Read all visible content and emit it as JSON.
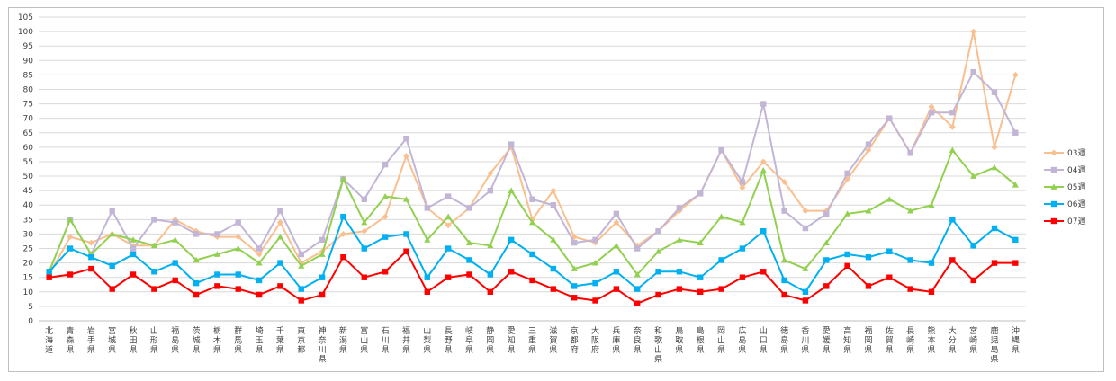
{
  "chart_data": {
    "type": "line",
    "ylim": [
      0,
      105
    ],
    "yticks": [
      0,
      5,
      10,
      15,
      20,
      25,
      30,
      35,
      40,
      45,
      50,
      55,
      60,
      65,
      70,
      75,
      80,
      85,
      90,
      95,
      100,
      105
    ],
    "grid": true,
    "legend_position": "right",
    "categories": [
      "北海道",
      "青森県",
      "岩手県",
      "宮城県",
      "秋田県",
      "山形県",
      "福島県",
      "茨城県",
      "栃木県",
      "群馬県",
      "埼玉県",
      "千葉県",
      "東京都",
      "神奈川県",
      "新潟県",
      "富山県",
      "石川県",
      "福井県",
      "山梨県",
      "長野県",
      "岐阜県",
      "静岡県",
      "愛知県",
      "三重県",
      "滋賀県",
      "京都府",
      "大阪府",
      "兵庫県",
      "奈良県",
      "和歌山県",
      "鳥取県",
      "島根県",
      "岡山県",
      "広島県",
      "山口県",
      "徳島県",
      "香川県",
      "愛媛県",
      "高知県",
      "福岡県",
      "佐賀県",
      "長崎県",
      "熊本県",
      "大分県",
      "宮崎県",
      "鹿児島県",
      "沖縄県"
    ],
    "series": [
      {
        "name": "03週",
        "color": "#f9bf8f",
        "marker": "diamond",
        "values": [
          16,
          29,
          27,
          30,
          26,
          26,
          35,
          31,
          29,
          29,
          23,
          34,
          20,
          24,
          30,
          31,
          36,
          57,
          39,
          33,
          39,
          51,
          60,
          35,
          45,
          29,
          27,
          34,
          26,
          31,
          38,
          44,
          59,
          46,
          55,
          48,
          38,
          38,
          49,
          59,
          70,
          58,
          74,
          67,
          100,
          60,
          85
        ]
      },
      {
        "name": "04週",
        "color": "#c2b5d5",
        "marker": "square",
        "values": [
          17,
          35,
          23,
          38,
          25,
          35,
          34,
          30,
          30,
          34,
          25,
          38,
          23,
          28,
          49,
          42,
          54,
          63,
          39,
          43,
          39,
          45,
          61,
          42,
          40,
          27,
          28,
          37,
          25,
          31,
          39,
          44,
          59,
          48,
          75,
          38,
          32,
          37,
          51,
          61,
          70,
          58,
          72,
          72,
          86,
          79,
          65
        ]
      },
      {
        "name": "05週",
        "color": "#92d050",
        "marker": "triangle",
        "values": [
          17,
          35,
          23,
          30,
          28,
          26,
          28,
          21,
          23,
          25,
          20,
          29,
          19,
          23,
          49,
          34,
          43,
          42,
          28,
          36,
          27,
          26,
          45,
          34,
          28,
          18,
          20,
          26,
          16,
          24,
          28,
          27,
          36,
          34,
          52,
          21,
          18,
          27,
          37,
          38,
          42,
          38,
          40,
          59,
          50,
          53,
          47
        ]
      },
      {
        "name": "06週",
        "color": "#00b0f0",
        "marker": "square",
        "values": [
          17,
          25,
          22,
          19,
          23,
          17,
          20,
          13,
          16,
          16,
          14,
          20,
          11,
          15,
          36,
          25,
          29,
          30,
          15,
          25,
          21,
          16,
          28,
          23,
          18,
          12,
          13,
          17,
          11,
          17,
          17,
          15,
          21,
          25,
          31,
          14,
          10,
          21,
          23,
          22,
          24,
          21,
          20,
          35,
          26,
          32,
          28
        ]
      },
      {
        "name": "07週",
        "color": "#ff0000",
        "marker": "square",
        "values": [
          15,
          16,
          18,
          11,
          16,
          11,
          14,
          9,
          12,
          11,
          9,
          12,
          7,
          9,
          22,
          15,
          17,
          24,
          10,
          15,
          16,
          10,
          17,
          14,
          11,
          8,
          7,
          11,
          6,
          9,
          11,
          10,
          11,
          15,
          17,
          9,
          7,
          12,
          19,
          12,
          15,
          11,
          10,
          21,
          14,
          20,
          20
        ]
      }
    ]
  }
}
